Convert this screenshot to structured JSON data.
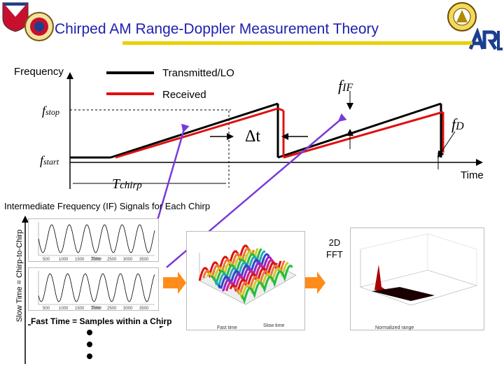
{
  "title": "Chirped AM Range-Doppler Measurement Theory",
  "axes": {
    "y_label": "Frequency",
    "x_label": "Time",
    "f_stop": "f",
    "f_stop_sub": "stop",
    "f_start": "f",
    "f_start_sub": "start",
    "t_chirp": "T",
    "t_chirp_sub": "chirp"
  },
  "legend": {
    "transmitted": "Transmitted/LO",
    "received": "Received"
  },
  "annotations": {
    "f_if": "f",
    "f_if_sub": "IF",
    "f_d": "f",
    "f_d_sub": "D",
    "delta_t": "Δt"
  },
  "colors": {
    "transmitted": "#000000",
    "received": "#e01010",
    "pointer": "#7a3ad8",
    "arrow": "#ff8c1a",
    "title": "#2020b0",
    "title_bar": "#e8d000"
  },
  "if_section": {
    "heading": "Intermediate Frequency (IF) Signals for Each Chirp",
    "slow_time_label": "Slow Time = Chirp-to-Chirp",
    "fast_time_label": "Fast Time = Samples within a Chirp",
    "x_ticks": [
      "500",
      "1000",
      "1500",
      "2000",
      "2500",
      "3000",
      "3500"
    ],
    "x_axis_label": "Time",
    "fft_label_line1": "2D",
    "fft_label_line2": "FFT",
    "surface_xlabel": "Fast time",
    "surface_ylabel": "Slow time",
    "range_xlabel": "Normalized range"
  }
}
